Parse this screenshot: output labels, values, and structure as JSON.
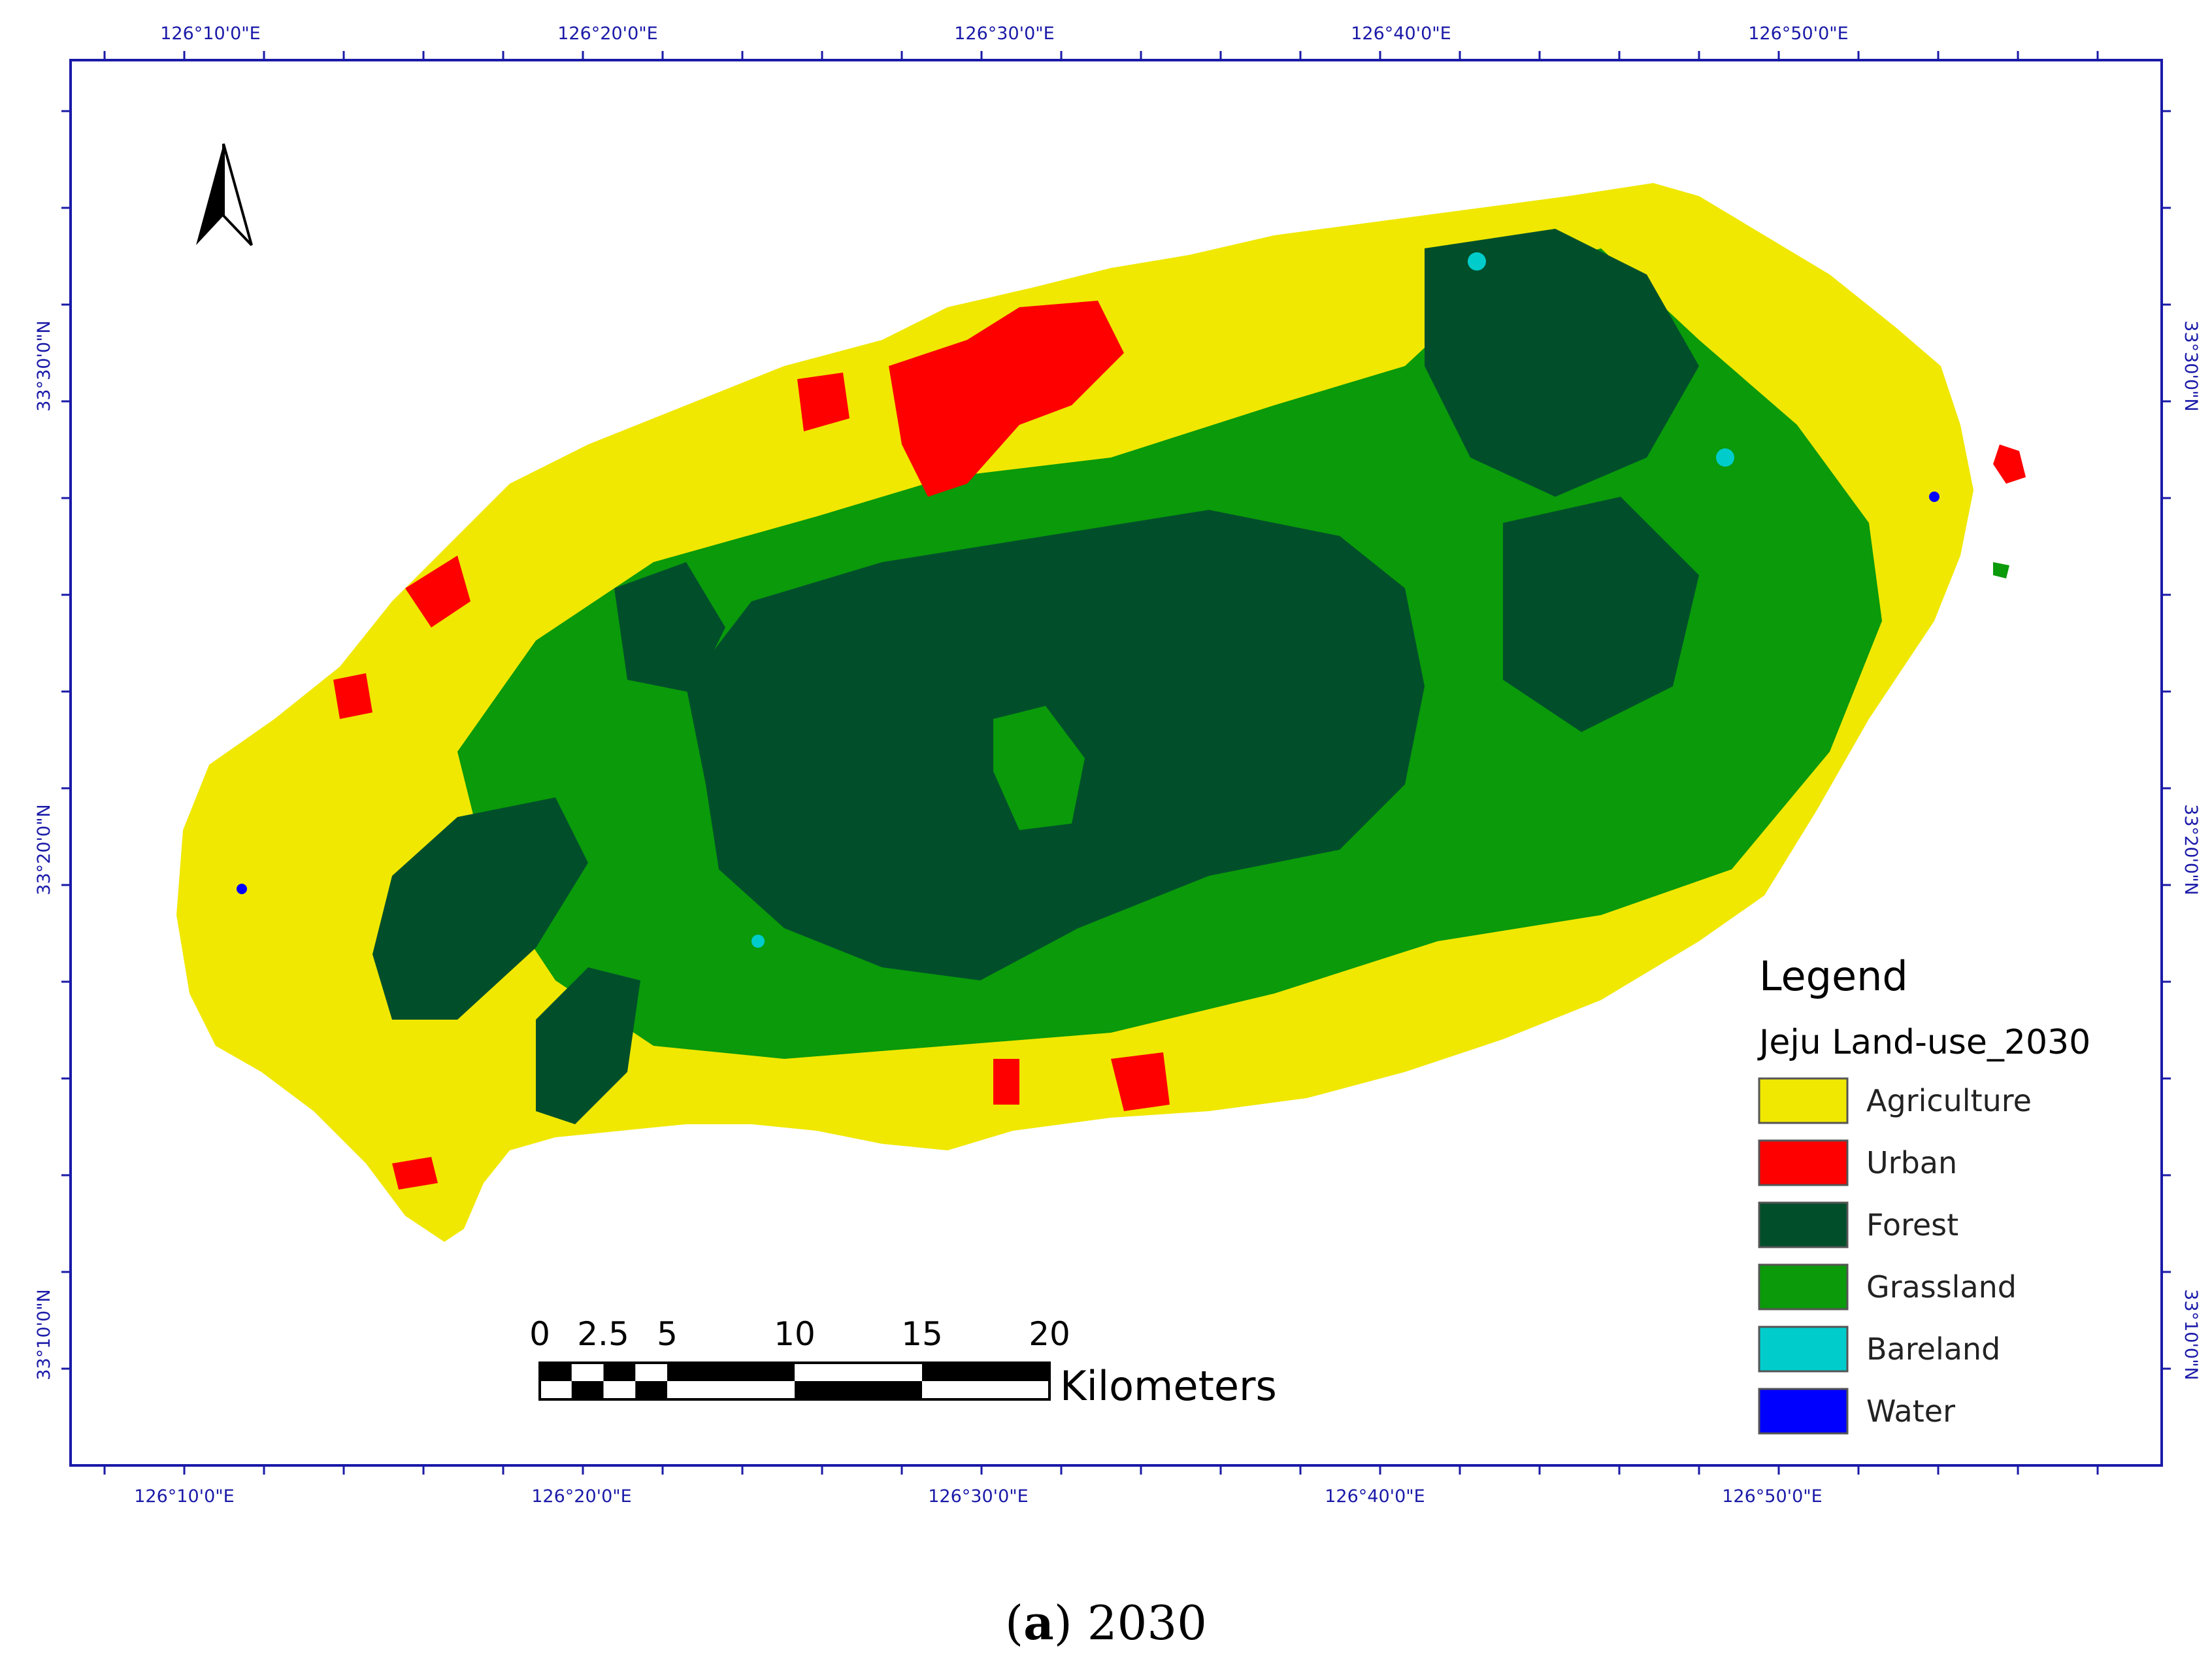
{
  "colors": {
    "agriculture": "#f0e800",
    "urban": "#ff0000",
    "forest": "#004f2a",
    "grassland": "#0a9a0a",
    "bareland": "#00cccc",
    "water": "#0000ff",
    "frame": "#1a1aa8"
  },
  "graticule": {
    "top_labels": [
      "126°10'0\"E",
      "126°20'0\"E",
      "126°30'0\"E",
      "126°40'0\"E",
      "126°50'0\"E"
    ],
    "bottom_labels": [
      "126°10'0\"E",
      "126°20'0\"E",
      "126°30'0\"E",
      "126°40'0\"E",
      "126°50'0\"E"
    ],
    "left_labels": [
      "33°30'0\"N",
      "33°20'0\"N",
      "33°10'0\"N"
    ],
    "right_labels": [
      "33°30'0\"N",
      "33°20'0\"N",
      "33°10'0\"N"
    ]
  },
  "north_arrow": {
    "icon": "north-arrow-icon"
  },
  "legend": {
    "title": "Legend",
    "layer_name": "Jeju Land-use_2030",
    "items": [
      {
        "label": "Agriculture",
        "color": "#f0e800"
      },
      {
        "label": "Urban",
        "color": "#ff0000"
      },
      {
        "label": "Forest",
        "color": "#004f2a"
      },
      {
        "label": "Grassland",
        "color": "#0a9a0a"
      },
      {
        "label": "Bareland",
        "color": "#00cccc"
      },
      {
        "label": "Water",
        "color": "#0000ff"
      }
    ]
  },
  "scale_bar": {
    "ticks": [
      "0",
      "2.5",
      "5",
      "10",
      "15",
      "20"
    ],
    "unit": "Kilometers"
  },
  "caption": {
    "letter": "a",
    "year": "2030"
  }
}
